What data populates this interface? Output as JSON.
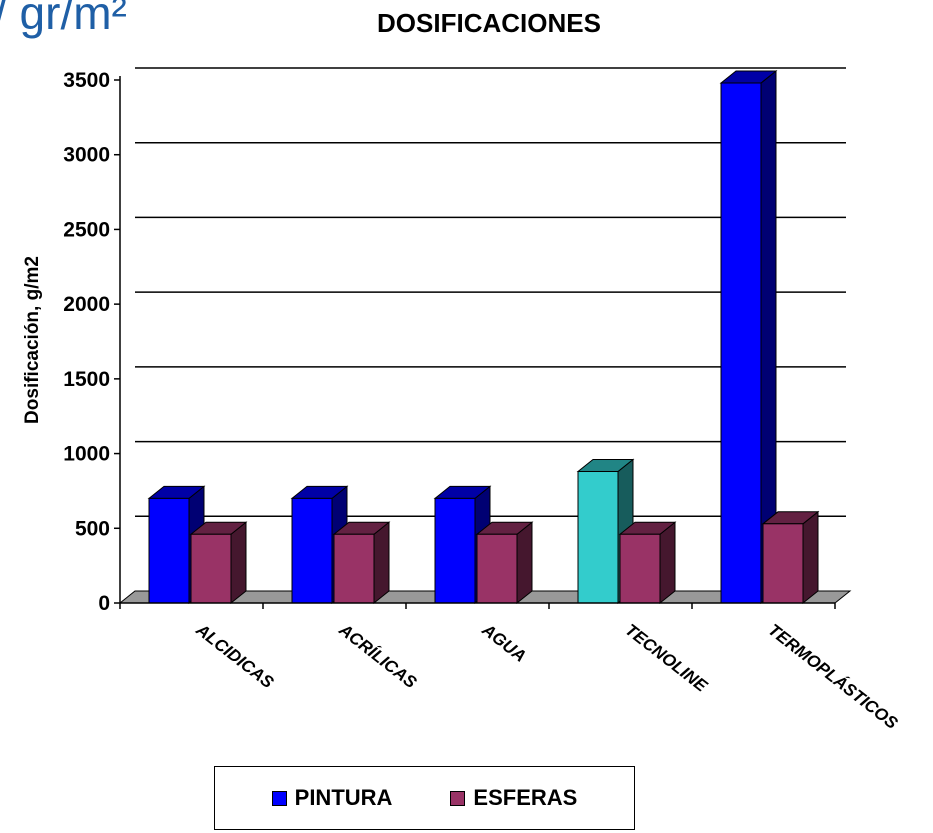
{
  "header_fragment": "/ gr/m²",
  "chart_data": {
    "type": "bar",
    "title": "DOSIFICACIONES",
    "xlabel": "",
    "ylabel": "Dosificación, g/m2",
    "ylim": [
      0,
      3500
    ],
    "yticks": [
      "0",
      "500",
      "1000",
      "1500",
      "2000",
      "2500",
      "3000",
      "3500"
    ],
    "grid": true,
    "legend_position": "bottom",
    "categories": [
      "ALCIDICAS",
      "ACRÍLICAS",
      "AGUA",
      "TECNOLINE",
      "TERMOPLÁSTICOS"
    ],
    "series": [
      {
        "name": "PINTURA",
        "values": [
          700,
          700,
          700,
          880,
          3480
        ],
        "color": "#0000ff",
        "highlight": {
          "index": 3,
          "color": "#33cccc"
        }
      },
      {
        "name": "ESFERAS",
        "values": [
          460,
          460,
          460,
          460,
          530
        ],
        "color": "#993366"
      }
    ]
  }
}
